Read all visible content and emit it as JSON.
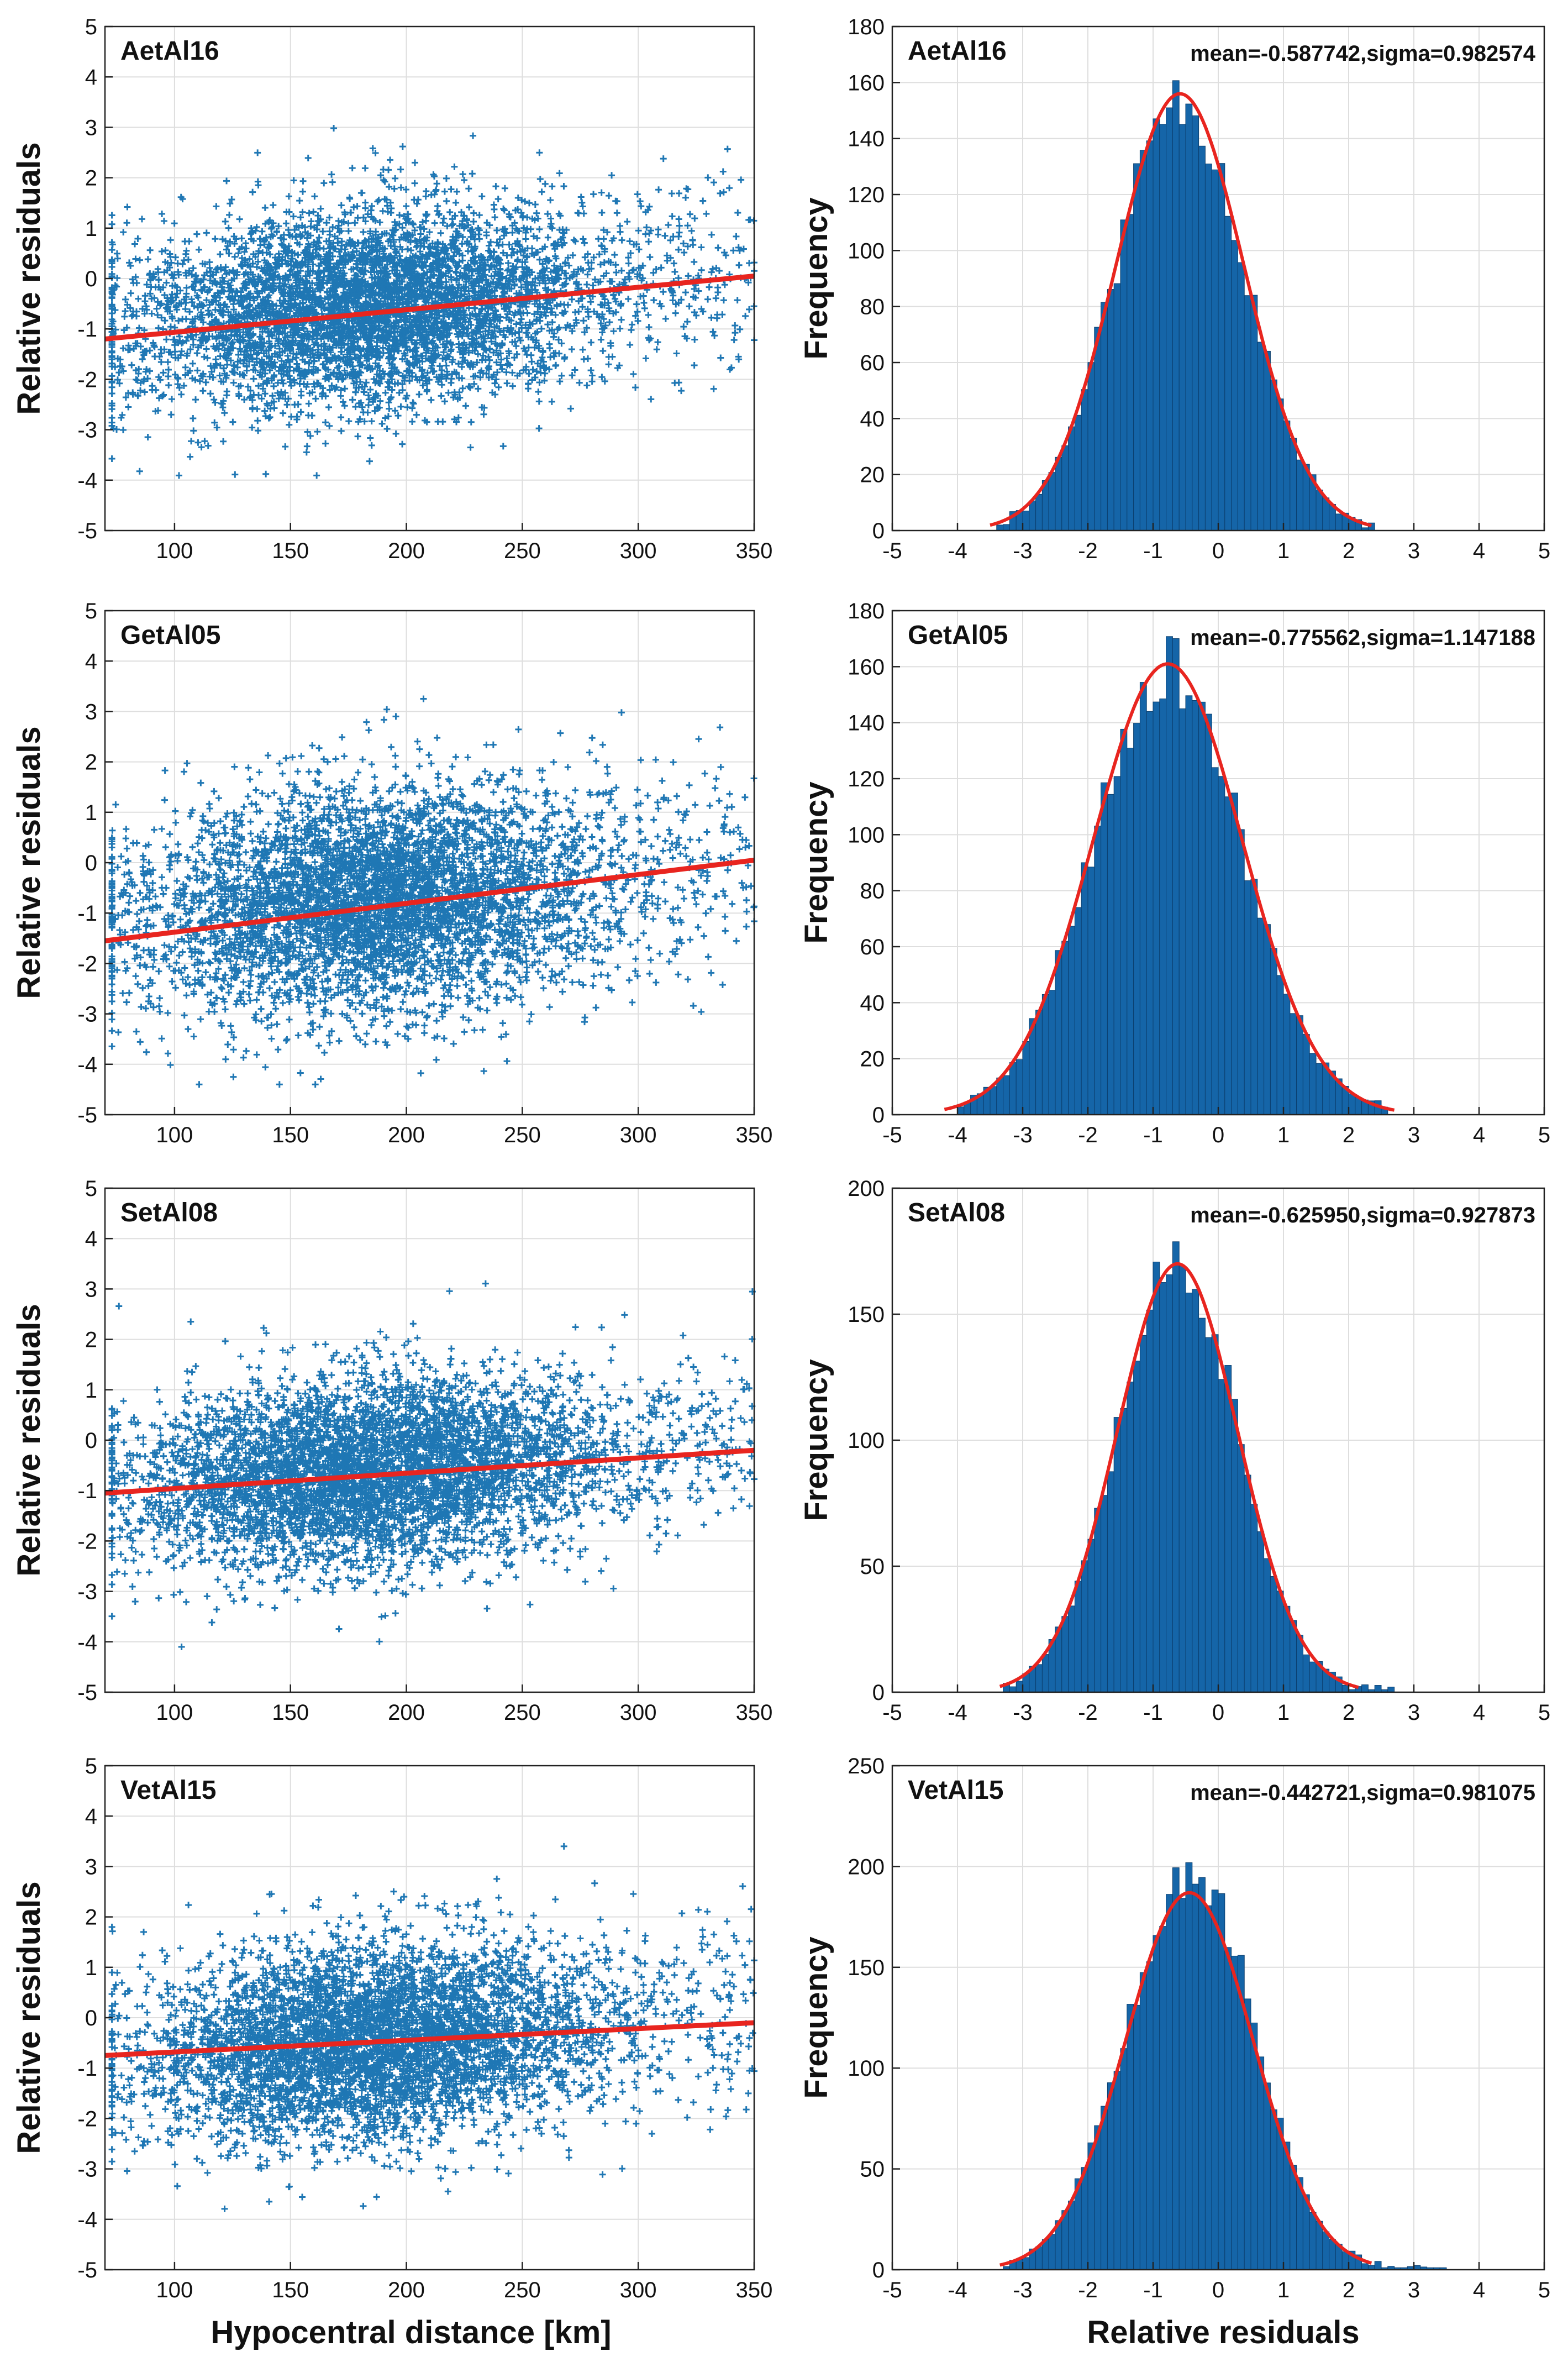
{
  "figure": {
    "scatter_ylabel": "Relative residuals",
    "hist_ylabel": "Frequency",
    "scatter_xlabel": "Hypocentral distance [km]",
    "hist_xlabel": "Relative residuals"
  },
  "chart_data": [
    {
      "type": "scatter",
      "title": "AetAl16",
      "ylabel": "Relative residuals",
      "xlabel": "",
      "xlim": [
        70,
        350
      ],
      "ylim": [
        -5,
        5
      ],
      "xticks": [
        100,
        150,
        200,
        250,
        300,
        350
      ],
      "yticks": [
        -5,
        -4,
        -3,
        -2,
        -1,
        0,
        1,
        2,
        3,
        4,
        5
      ],
      "cloud": {
        "center_x": 185,
        "spread_x": 48,
        "center_y": -0.55,
        "spread_y": 0.95,
        "n_points": 5200
      },
      "fit_line": {
        "x": [
          70,
          350
        ],
        "y": [
          -1.2,
          0.05
        ]
      },
      "colors": {
        "points": "#1f77b4",
        "fit": "#e8251f"
      }
    },
    {
      "type": "bar",
      "title": "AetAl16",
      "stats": "mean=-0.587742,sigma=0.982574",
      "ylabel": "Frequency",
      "xlabel": "",
      "xlim": [
        -5,
        5
      ],
      "ylim": [
        0,
        180
      ],
      "xticks": [
        -5,
        -4,
        -3,
        -2,
        -1,
        0,
        1,
        2,
        3,
        4,
        5
      ],
      "yticks": [
        0,
        20,
        40,
        60,
        80,
        100,
        120,
        140,
        160,
        180
      ],
      "histogram": {
        "range": [
          -3.4,
          2.4
        ],
        "bin_width": 0.1,
        "peak": 156,
        "seed": 11
      },
      "fit": {
        "mean": -0.587742,
        "sigma": 0.982574,
        "peak": 156,
        "x_range": [
          -3.5,
          2.35
        ]
      },
      "colors": {
        "bars": "#1565a8",
        "fit": "#e8251f"
      }
    },
    {
      "type": "scatter",
      "title": "GetAl05",
      "ylabel": "Relative residuals",
      "xlabel": "",
      "xlim": [
        70,
        350
      ],
      "ylim": [
        -5,
        5
      ],
      "xticks": [
        100,
        150,
        200,
        250,
        300,
        350
      ],
      "yticks": [
        -5,
        -4,
        -3,
        -2,
        -1,
        0,
        1,
        2,
        3,
        4,
        5
      ],
      "cloud": {
        "center_x": 185,
        "spread_x": 48,
        "center_y": -0.75,
        "spread_y": 1.1,
        "n_points": 5200
      },
      "fit_line": {
        "x": [
          70,
          350
        ],
        "y": [
          -1.55,
          0.05
        ]
      },
      "colors": {
        "points": "#1f77b4",
        "fit": "#e8251f"
      }
    },
    {
      "type": "bar",
      "title": "GetAl05",
      "stats": "mean=-0.775562,sigma=1.147188",
      "ylabel": "Frequency",
      "xlabel": "",
      "xlim": [
        -5,
        5
      ],
      "ylim": [
        0,
        180
      ],
      "xticks": [
        -5,
        -4,
        -3,
        -2,
        -1,
        0,
        1,
        2,
        3,
        4,
        5
      ],
      "yticks": [
        0,
        20,
        40,
        60,
        80,
        100,
        120,
        140,
        160,
        180
      ],
      "histogram": {
        "range": [
          -4.0,
          2.6
        ],
        "bin_width": 0.1,
        "peak": 160,
        "seed": 23
      },
      "fit": {
        "mean": -0.775562,
        "sigma": 1.147188,
        "peak": 161,
        "x_range": [
          -4.2,
          2.7
        ]
      },
      "colors": {
        "bars": "#1565a8",
        "fit": "#e8251f"
      }
    },
    {
      "type": "scatter",
      "title": "SetAl08",
      "ylabel": "Relative residuals",
      "xlabel": "",
      "xlim": [
        70,
        350
      ],
      "ylim": [
        -5,
        5
      ],
      "xticks": [
        100,
        150,
        200,
        250,
        300,
        350
      ],
      "yticks": [
        -5,
        -4,
        -3,
        -2,
        -1,
        0,
        1,
        2,
        3,
        4,
        5
      ],
      "cloud": {
        "center_x": 185,
        "spread_x": 48,
        "center_y": -0.6,
        "spread_y": 0.92,
        "n_points": 5200
      },
      "fit_line": {
        "x": [
          70,
          350
        ],
        "y": [
          -1.05,
          -0.2
        ]
      },
      "colors": {
        "points": "#1f77b4",
        "fit": "#e8251f"
      }
    },
    {
      "type": "bar",
      "title": "SetAl08",
      "stats": "mean=-0.625950,sigma=0.927873",
      "ylabel": "Frequency",
      "xlabel": "",
      "xlim": [
        -5,
        5
      ],
      "ylim": [
        0,
        200
      ],
      "xticks": [
        -5,
        -4,
        -3,
        -2,
        -1,
        0,
        1,
        2,
        3,
        4,
        5
      ],
      "yticks": [
        0,
        50,
        100,
        150,
        200
      ],
      "histogram": {
        "range": [
          -3.3,
          2.7
        ],
        "bin_width": 0.1,
        "peak": 172,
        "seed": 37
      },
      "fit": {
        "mean": -0.62595,
        "sigma": 0.927873,
        "peak": 170,
        "x_range": [
          -3.35,
          2.15
        ]
      },
      "colors": {
        "bars": "#1565a8",
        "fit": "#e8251f"
      }
    },
    {
      "type": "scatter",
      "title": "VetAl15",
      "ylabel": "Relative residuals",
      "xlabel": "Hypocentral distance [km]",
      "xlim": [
        70,
        350
      ],
      "ylim": [
        -5,
        5
      ],
      "xticks": [
        100,
        150,
        200,
        250,
        300,
        350
      ],
      "yticks": [
        -5,
        -4,
        -3,
        -2,
        -1,
        0,
        1,
        2,
        3,
        4,
        5
      ],
      "cloud": {
        "center_x": 185,
        "spread_x": 48,
        "center_y": -0.45,
        "spread_y": 0.95,
        "n_points": 5200
      },
      "fit_line": {
        "x": [
          70,
          350
        ],
        "y": [
          -0.75,
          -0.1
        ]
      },
      "colors": {
        "points": "#1f77b4",
        "fit": "#e8251f"
      }
    },
    {
      "type": "bar",
      "title": "VetAl15",
      "stats": "mean=-0.442721,sigma=0.981075",
      "ylabel": "Frequency",
      "xlabel": "Relative residuals",
      "xlim": [
        -5,
        5
      ],
      "ylim": [
        0,
        250
      ],
      "xticks": [
        -5,
        -4,
        -3,
        -2,
        -1,
        0,
        1,
        2,
        3,
        4,
        5
      ],
      "yticks": [
        0,
        50,
        100,
        150,
        200,
        250
      ],
      "histogram": {
        "range": [
          -3.3,
          3.5
        ],
        "bin_width": 0.1,
        "peak": 200,
        "seed": 53
      },
      "fit": {
        "mean": -0.442721,
        "sigma": 0.981075,
        "peak": 187,
        "x_range": [
          -3.35,
          2.35
        ]
      },
      "colors": {
        "bars": "#1565a8",
        "fit": "#e8251f"
      }
    }
  ]
}
